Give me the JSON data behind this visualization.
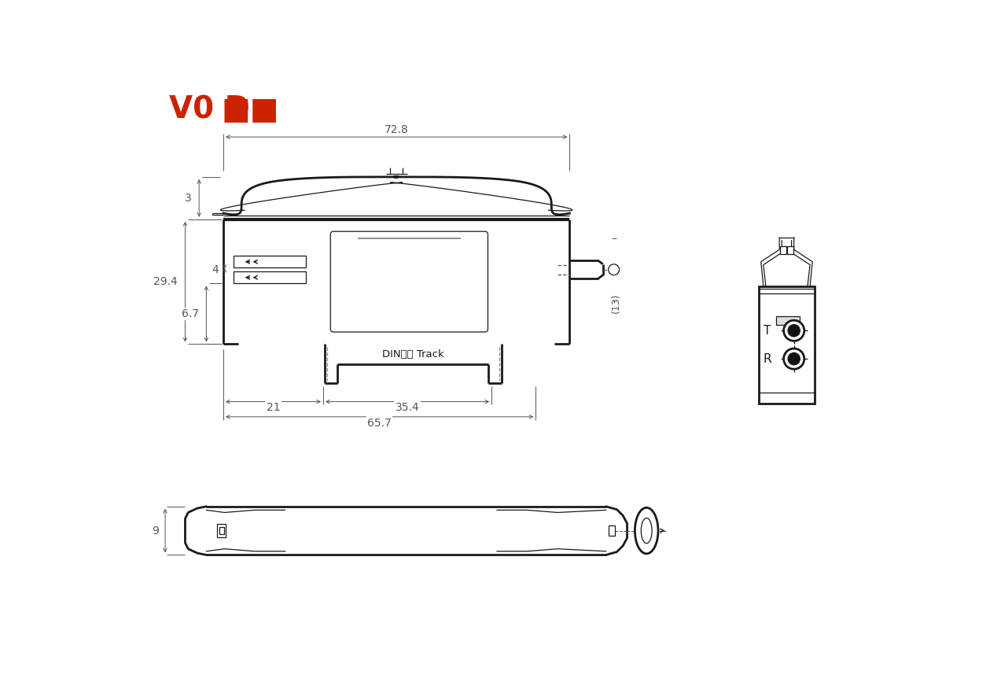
{
  "bg_color": "#ffffff",
  "line_color": "#1a1a1a",
  "dim_color": "#555555",
  "red_color": "#cc2200",
  "dim_728": "72.8",
  "dim_3": "3",
  "dim_294": "29.4",
  "dim_4": "4",
  "dim_67": "6.7",
  "dim_21": "21",
  "dim_354": "35.4",
  "dim_657": "65.7",
  "dim_13": "(13)",
  "dim_9": "9",
  "din_track_label": "DIN轨道 Track"
}
